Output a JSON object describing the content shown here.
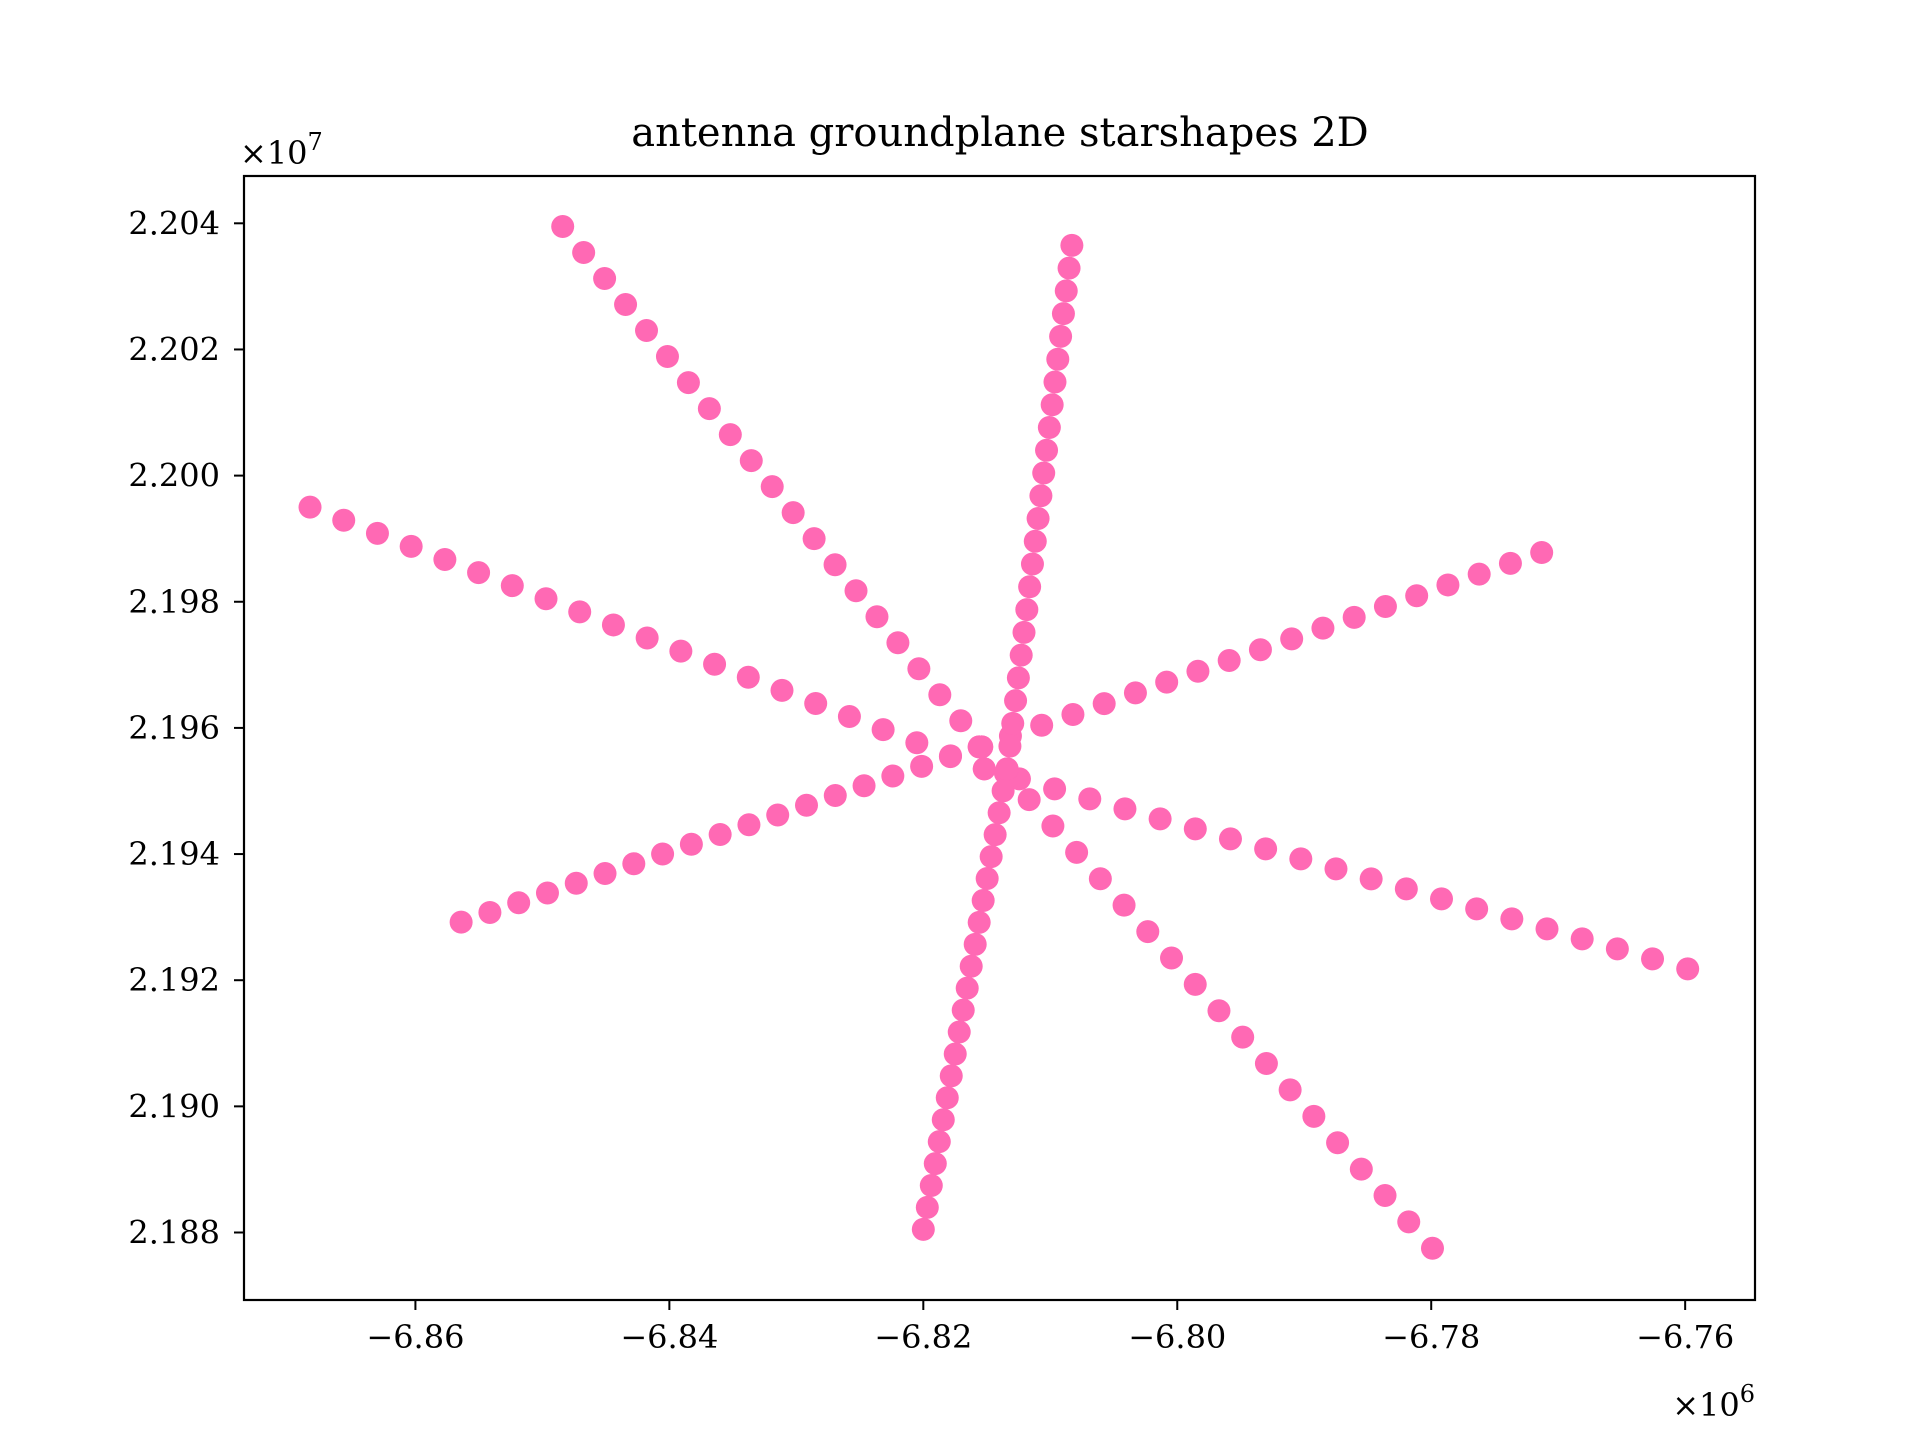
{
  "chart_data": {
    "type": "scatter",
    "title": "antenna groundplane starshapes 2D",
    "xlabel": "",
    "ylabel": "",
    "x_offset_label": "×10^6",
    "y_offset_label": "×10^7",
    "xlim": [
      -6.8735,
      -6.7545
    ],
    "ylim": [
      2.18693,
      2.20475
    ],
    "x_ticks": [
      -6.86,
      -6.84,
      -6.82,
      -6.8,
      -6.78,
      -6.76
    ],
    "x_tick_labels": [
      "−6.86",
      "−6.84",
      "−6.82",
      "−6.80",
      "−6.78",
      "−6.76"
    ],
    "y_ticks": [
      2.188,
      2.19,
      2.192,
      2.194,
      2.196,
      2.198,
      2.2,
      2.202,
      2.204
    ],
    "y_tick_labels": [
      "2.188",
      "2.190",
      "2.192",
      "2.194",
      "2.196",
      "2.198",
      "2.200",
      "2.202",
      "2.204"
    ],
    "grid": false,
    "marker_color": "#ff69b4",
    "series": [
      {
        "segments": [
          {
            "start": [
              -6.8683,
              2.1995
            ],
            "end": [
              -6.8152,
              2.19535
            ],
            "n": 21
          },
          {
            "start": [
              -6.8152,
              2.19535
            ],
            "end": [
              -6.7598,
              2.19218
            ],
            "n": 21
          },
          {
            "start": [
              -6.8484,
              2.20395
            ],
            "end": [
              -6.8154,
              2.1957
            ],
            "n": 21
          },
          {
            "start": [
              -6.8154,
              2.1957
            ],
            "end": [
              -6.7799,
              2.18775
            ],
            "n": 20
          },
          {
            "start": [
              -6.8564,
              2.19292
            ],
            "end": [
              -6.8156,
              2.1957
            ],
            "n": 19
          },
          {
            "start": [
              -6.8156,
              2.1957
            ],
            "end": [
              -6.7713,
              2.19878
            ],
            "n": 19
          },
          {
            "start": [
              -6.82,
              2.18805
            ],
            "end": [
              -6.8134,
              2.19535
            ],
            "n": 22
          },
          {
            "start": [
              -6.8134,
              2.19535
            ],
            "end": [
              -6.8083,
              2.20365
            ],
            "n": 24
          }
        ]
      }
    ]
  }
}
